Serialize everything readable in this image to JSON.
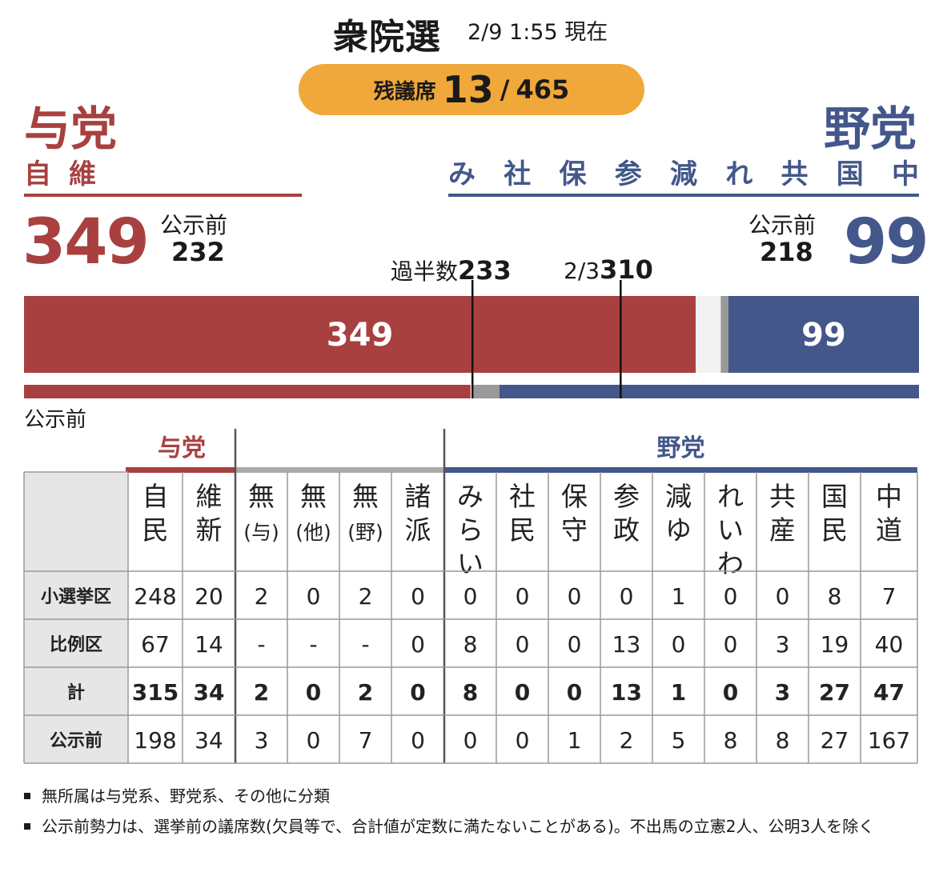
{
  "header": {
    "title": "衆院選",
    "timestamp": "2/9 1:55 現在",
    "remaining_label": "残議席",
    "remaining_seats": "13",
    "separator": "/",
    "total_seats": "465"
  },
  "ruling": {
    "label": "与党",
    "parties_text": "自維",
    "total": "349",
    "pre_label": "公示前",
    "pre_value": "232"
  },
  "opposition": {
    "label": "野党",
    "parties": [
      "み",
      "社",
      "保",
      "参",
      "減",
      "れ",
      "共",
      "国",
      "中"
    ],
    "total": "99",
    "pre_label": "公示前",
    "pre_value": "218"
  },
  "thresholds": {
    "majority_label": "過半数",
    "majority_value": "233",
    "twothirds_label": "2/3",
    "twothirds_value": "310"
  },
  "pre_bar_label": "公示前",
  "colors": {
    "ruling": "#a84040",
    "opposition": "#43578a",
    "other": "#999999",
    "remaining": "#f2f2f2",
    "badge": "#f0a83a"
  },
  "chart_data": {
    "type": "bar",
    "orientation": "horizontal-stacked",
    "total": 465,
    "current": {
      "ruling": 349,
      "other": 4,
      "opposition": 99,
      "remaining": 13
    },
    "pre_election": {
      "ruling": 232,
      "other": 15,
      "opposition": 218
    },
    "reference_lines": [
      {
        "label": "過半数",
        "value": 233
      },
      {
        "label": "2/3",
        "value": 310
      }
    ],
    "bar_labels": {
      "ruling": "349",
      "opposition": "99"
    }
  },
  "table": {
    "group_ruling": "与党",
    "group_opposition": "野党",
    "columns": [
      {
        "key": "jimin",
        "chars": [
          "自",
          "民"
        ]
      },
      {
        "key": "ishin",
        "chars": [
          "維",
          "新"
        ]
      },
      {
        "key": "mu_yo",
        "chars": [
          "無",
          "(与)"
        ]
      },
      {
        "key": "mu_ta",
        "chars": [
          "無",
          "(他)"
        ]
      },
      {
        "key": "mu_ya",
        "chars": [
          "無",
          "(野)"
        ]
      },
      {
        "key": "shoha",
        "chars": [
          "諸",
          "派"
        ]
      },
      {
        "key": "mirai",
        "chars": [
          "み",
          "ら",
          "い"
        ]
      },
      {
        "key": "shamin",
        "chars": [
          "社",
          "民"
        ]
      },
      {
        "key": "hoshu",
        "chars": [
          "保",
          "守"
        ]
      },
      {
        "key": "sansei",
        "chars": [
          "参",
          "政"
        ]
      },
      {
        "key": "genyu",
        "chars": [
          "減",
          "ゆ"
        ]
      },
      {
        "key": "reiwa",
        "chars": [
          "れ",
          "い",
          "わ"
        ]
      },
      {
        "key": "kyosan",
        "chars": [
          "共",
          "産"
        ]
      },
      {
        "key": "kokumin",
        "chars": [
          "国",
          "民"
        ]
      },
      {
        "key": "chudo",
        "chars": [
          "中",
          "道"
        ]
      }
    ],
    "rows": [
      {
        "label": "小選挙区",
        "values": [
          "248",
          "20",
          "2",
          "0",
          "2",
          "0",
          "0",
          "0",
          "0",
          "0",
          "1",
          "0",
          "0",
          "8",
          "7"
        ],
        "bold": false
      },
      {
        "label": "比例区",
        "values": [
          "67",
          "14",
          "-",
          "-",
          "-",
          "0",
          "8",
          "0",
          "0",
          "13",
          "0",
          "0",
          "3",
          "19",
          "40"
        ],
        "bold": false
      },
      {
        "label": "計",
        "values": [
          "315",
          "34",
          "2",
          "0",
          "2",
          "0",
          "8",
          "0",
          "0",
          "13",
          "1",
          "0",
          "3",
          "27",
          "47"
        ],
        "bold": true
      },
      {
        "label": "公示前",
        "values": [
          "198",
          "34",
          "3",
          "0",
          "7",
          "0",
          "0",
          "0",
          "1",
          "2",
          "5",
          "8",
          "8",
          "27",
          "167"
        ],
        "bold": false
      }
    ]
  },
  "notes": [
    "無所属は与党系、野党系、その他に分類",
    "公示前勢力は、選挙前の議席数(欠員等で、合計値が定数に満たないことがある)。不出馬の立憲2人、公明3人を除く"
  ]
}
